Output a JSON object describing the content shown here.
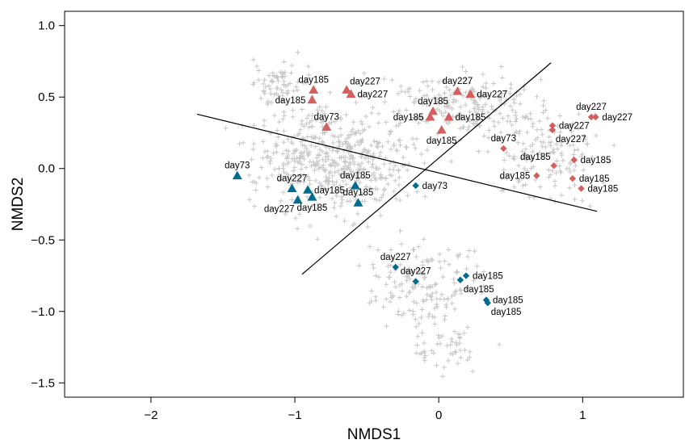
{
  "chart_data": {
    "type": "scatter",
    "title": "",
    "xlabel": "NMDS1",
    "ylabel": "NMDS2",
    "xlim": [
      -2.6,
      1.7
    ],
    "ylim": [
      -1.6,
      1.1
    ],
    "xticks": [
      -2,
      -1,
      0,
      1
    ],
    "xtick_labels": [
      "−2",
      "−1",
      "0",
      "1"
    ],
    "yticks": [
      1.0,
      0.5,
      0.0,
      -0.5,
      -1.0,
      -1.5
    ],
    "ytick_labels": [
      "1.0",
      "0.5",
      "0.0",
      "−0.5",
      "−1.0",
      "−1.5"
    ],
    "grid": false,
    "legend": "none",
    "colors": {
      "red": "#d45f5f",
      "blue": "#006d8f",
      "background": "#c8c8c8",
      "line": "#000000"
    },
    "lines": [
      {
        "name": "axis-line-a",
        "x": [
          -1.68,
          1.1
        ],
        "y": [
          0.38,
          -0.3
        ]
      },
      {
        "name": "axis-line-b",
        "x": [
          -0.95,
          0.78
        ],
        "y": [
          -0.74,
          0.74
        ]
      }
    ],
    "series": [
      {
        "marker": "triangle",
        "color": "red",
        "points": [
          {
            "x": -0.87,
            "y": 0.55,
            "label": "day185",
            "label_pos": "above"
          },
          {
            "x": -0.88,
            "y": 0.48,
            "label": "day185",
            "label_pos": "left"
          },
          {
            "x": -0.64,
            "y": 0.55,
            "label": "day227",
            "label_pos": "above-right"
          },
          {
            "x": -0.61,
            "y": 0.52,
            "label": "day227",
            "label_pos": "right"
          },
          {
            "x": -0.78,
            "y": 0.29,
            "label": "day73",
            "label_pos": "above"
          },
          {
            "x": 0.13,
            "y": 0.54,
            "label": "day227",
            "label_pos": "above"
          },
          {
            "x": 0.22,
            "y": 0.52,
            "label": "day227",
            "label_pos": "right"
          },
          {
            "x": -0.04,
            "y": 0.4,
            "label": "day185",
            "label_pos": "above"
          },
          {
            "x": 0.07,
            "y": 0.36,
            "label": "day185",
            "label_pos": "right"
          },
          {
            "x": -0.06,
            "y": 0.36,
            "label": "day185",
            "label_pos": "left"
          },
          {
            "x": 0.02,
            "y": 0.27,
            "label": "day185",
            "label_pos": "below"
          }
        ]
      },
      {
        "marker": "diamond",
        "color": "red",
        "points": [
          {
            "x": 1.06,
            "y": 0.36,
            "label": "day227",
            "label_pos": "above"
          },
          {
            "x": 1.09,
            "y": 0.36,
            "label": "day227",
            "label_pos": "right"
          },
          {
            "x": 0.79,
            "y": 0.3,
            "label": "day227",
            "label_pos": "right"
          },
          {
            "x": 0.79,
            "y": 0.27,
            "label": "day227",
            "label_pos": "below-right"
          },
          {
            "x": 0.45,
            "y": 0.14,
            "label": "day73",
            "label_pos": "above"
          },
          {
            "x": 0.8,
            "y": 0.02,
            "label": "day185",
            "label_pos": "above-left"
          },
          {
            "x": 0.94,
            "y": 0.06,
            "label": "day185",
            "label_pos": "right"
          },
          {
            "x": 0.68,
            "y": -0.05,
            "label": "day185",
            "label_pos": "left"
          },
          {
            "x": 0.93,
            "y": -0.07,
            "label": "day185",
            "label_pos": "right"
          },
          {
            "x": 0.99,
            "y": -0.14,
            "label": "day185",
            "label_pos": "right"
          }
        ]
      },
      {
        "marker": "triangle",
        "color": "blue",
        "points": [
          {
            "x": -1.4,
            "y": -0.05,
            "label": "day73",
            "label_pos": "above"
          },
          {
            "x": -1.02,
            "y": -0.14,
            "label": "day227",
            "label_pos": "above"
          },
          {
            "x": -0.91,
            "y": -0.15,
            "label": "day185",
            "label_pos": "right"
          },
          {
            "x": -0.98,
            "y": -0.22,
            "label": "day227",
            "label_pos": "below-left"
          },
          {
            "x": -0.88,
            "y": -0.2,
            "label": "day185",
            "label_pos": "below"
          },
          {
            "x": -0.58,
            "y": -0.12,
            "label": "day185",
            "label_pos": "above"
          },
          {
            "x": -0.56,
            "y": -0.24,
            "label": "day185",
            "label_pos": "above"
          }
        ]
      },
      {
        "marker": "diamond",
        "color": "blue",
        "points": [
          {
            "x": -0.16,
            "y": -0.12,
            "label": "day73",
            "label_pos": "right"
          },
          {
            "x": -0.3,
            "y": -0.69,
            "label": "day227",
            "label_pos": "above"
          },
          {
            "x": -0.16,
            "y": -0.79,
            "label": "day227",
            "label_pos": "above"
          },
          {
            "x": 0.19,
            "y": -0.75,
            "label": "day185",
            "label_pos": "right"
          },
          {
            "x": 0.15,
            "y": -0.78,
            "label": "day185",
            "label_pos": "below-right"
          },
          {
            "x": 0.33,
            "y": -0.92,
            "label": "day185",
            "label_pos": "right"
          },
          {
            "x": 0.34,
            "y": -0.94,
            "label": "day185",
            "label_pos": "below-right"
          }
        ]
      }
    ]
  }
}
